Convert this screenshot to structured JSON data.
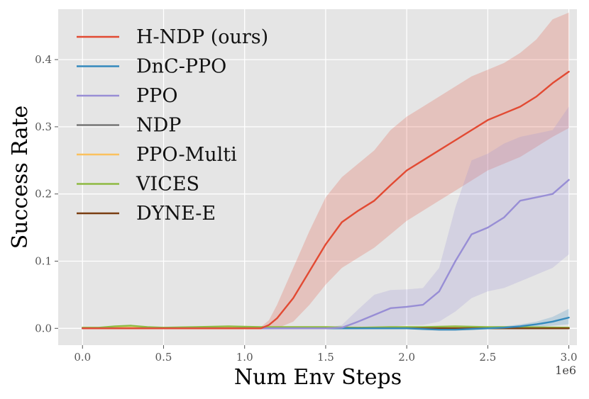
{
  "chart_data": {
    "type": "line",
    "title": "",
    "xlabel": "Num Env Steps",
    "ylabel": "Success Rate",
    "x_offset_label": "1e6",
    "xlim": [
      -0.15,
      3.05
    ],
    "ylim": [
      -0.025,
      0.475
    ],
    "x_ticks": [
      0.0,
      0.5,
      1.0,
      1.5,
      2.0,
      2.5,
      3.0
    ],
    "x_tick_labels": [
      "0.0",
      "0.5",
      "1.0",
      "1.5",
      "2.0",
      "2.5",
      "3.0"
    ],
    "y_ticks": [
      0.0,
      0.1,
      0.2,
      0.3,
      0.4
    ],
    "y_tick_labels": [
      "0.0",
      "0.1",
      "0.2",
      "0.3",
      "0.4"
    ],
    "grid": true,
    "legend_position": "top-left",
    "background": "#e5e5e5",
    "series": [
      {
        "name": "H-NDP (ours)",
        "color": "#e24a33",
        "x": [
          0,
          0.2,
          0.4,
          0.6,
          0.8,
          1.0,
          1.1,
          1.15,
          1.2,
          1.3,
          1.4,
          1.5,
          1.6,
          1.7,
          1.8,
          1.9,
          2.0,
          2.1,
          2.2,
          2.3,
          2.4,
          2.5,
          2.6,
          2.7,
          2.8,
          2.9,
          3.0
        ],
        "y": [
          0,
          0,
          0,
          0,
          0,
          0,
          0,
          0.005,
          0.015,
          0.045,
          0.085,
          0.125,
          0.158,
          0.175,
          0.19,
          0.213,
          0.235,
          0.25,
          0.265,
          0.28,
          0.295,
          0.31,
          0.32,
          0.33,
          0.345,
          0.365,
          0.382
        ],
        "lower": [
          0,
          0,
          0,
          0,
          0,
          0,
          0,
          0,
          0,
          0.01,
          0.035,
          0.065,
          0.09,
          0.105,
          0.12,
          0.14,
          0.16,
          0.175,
          0.19,
          0.205,
          0.22,
          0.235,
          0.245,
          0.255,
          0.27,
          0.285,
          0.298
        ],
        "upper": [
          0,
          0,
          0,
          0,
          0,
          0,
          0.002,
          0.012,
          0.035,
          0.09,
          0.145,
          0.195,
          0.225,
          0.245,
          0.265,
          0.295,
          0.315,
          0.33,
          0.345,
          0.36,
          0.375,
          0.385,
          0.395,
          0.41,
          0.43,
          0.46,
          0.47
        ]
      },
      {
        "name": "DnC-PPO",
        "color": "#348abd",
        "x": [
          0,
          0.5,
          1.0,
          1.5,
          2.0,
          2.1,
          2.2,
          2.3,
          2.4,
          2.5,
          2.6,
          2.7,
          2.8,
          2.9,
          3.0
        ],
        "y": [
          0,
          0,
          0,
          0,
          0,
          -0.001,
          -0.002,
          -0.002,
          -0.001,
          0.0,
          0.001,
          0.003,
          0.006,
          0.01,
          0.016
        ],
        "lower": [
          0,
          0,
          0,
          0,
          0,
          -0.002,
          -0.003,
          -0.003,
          -0.002,
          -0.001,
          0,
          0.001,
          0.002,
          0.004,
          0.006
        ],
        "upper": [
          0,
          0,
          0,
          0,
          0,
          0,
          0,
          0,
          0,
          0.001,
          0.003,
          0.006,
          0.01,
          0.017,
          0.029
        ]
      },
      {
        "name": "PPO",
        "color": "#988ed5",
        "x": [
          0,
          0.5,
          1.0,
          1.5,
          1.6,
          1.7,
          1.8,
          1.9,
          2.0,
          2.1,
          2.2,
          2.3,
          2.4,
          2.5,
          2.6,
          2.7,
          2.8,
          2.9,
          3.0
        ],
        "y": [
          0,
          0,
          0,
          0,
          0.001,
          0.01,
          0.02,
          0.03,
          0.032,
          0.035,
          0.055,
          0.1,
          0.14,
          0.15,
          0.165,
          0.19,
          0.195,
          0.2,
          0.221
        ],
        "lower": [
          0,
          0,
          0,
          0,
          0,
          0,
          0,
          0.002,
          0.005,
          0.005,
          0.01,
          0.025,
          0.045,
          0.055,
          0.06,
          0.07,
          0.08,
          0.09,
          0.11
        ],
        "upper": [
          0,
          0,
          0,
          0,
          0.005,
          0.028,
          0.05,
          0.057,
          0.058,
          0.06,
          0.09,
          0.18,
          0.25,
          0.26,
          0.275,
          0.285,
          0.29,
          0.295,
          0.33
        ]
      },
      {
        "name": "NDP",
        "color": "#777777",
        "x": [
          0,
          3.0
        ],
        "y": [
          0,
          0
        ]
      },
      {
        "name": "PPO-Multi",
        "color": "#fbc15e",
        "x": [
          0,
          3.0
        ],
        "y": [
          0.001,
          0.001
        ]
      },
      {
        "name": "VICES",
        "color": "#8eba42",
        "x": [
          0,
          0.1,
          0.2,
          0.3,
          0.4,
          0.5,
          0.7,
          0.9,
          1.1,
          1.3,
          1.5,
          1.7,
          1.9,
          2.1,
          2.3,
          2.5,
          2.7,
          3.0
        ],
        "y": [
          0.001,
          0.001,
          0.003,
          0.004,
          0.002,
          0.001,
          0.002,
          0.003,
          0.002,
          0.002,
          0.002,
          0.001,
          0.002,
          0.002,
          0.003,
          0.002,
          0.002,
          0.001
        ]
      },
      {
        "name": "DYNE-E",
        "color": "#7a3e12",
        "x": [
          0,
          3.0
        ],
        "y": [
          0,
          0
        ]
      }
    ]
  }
}
